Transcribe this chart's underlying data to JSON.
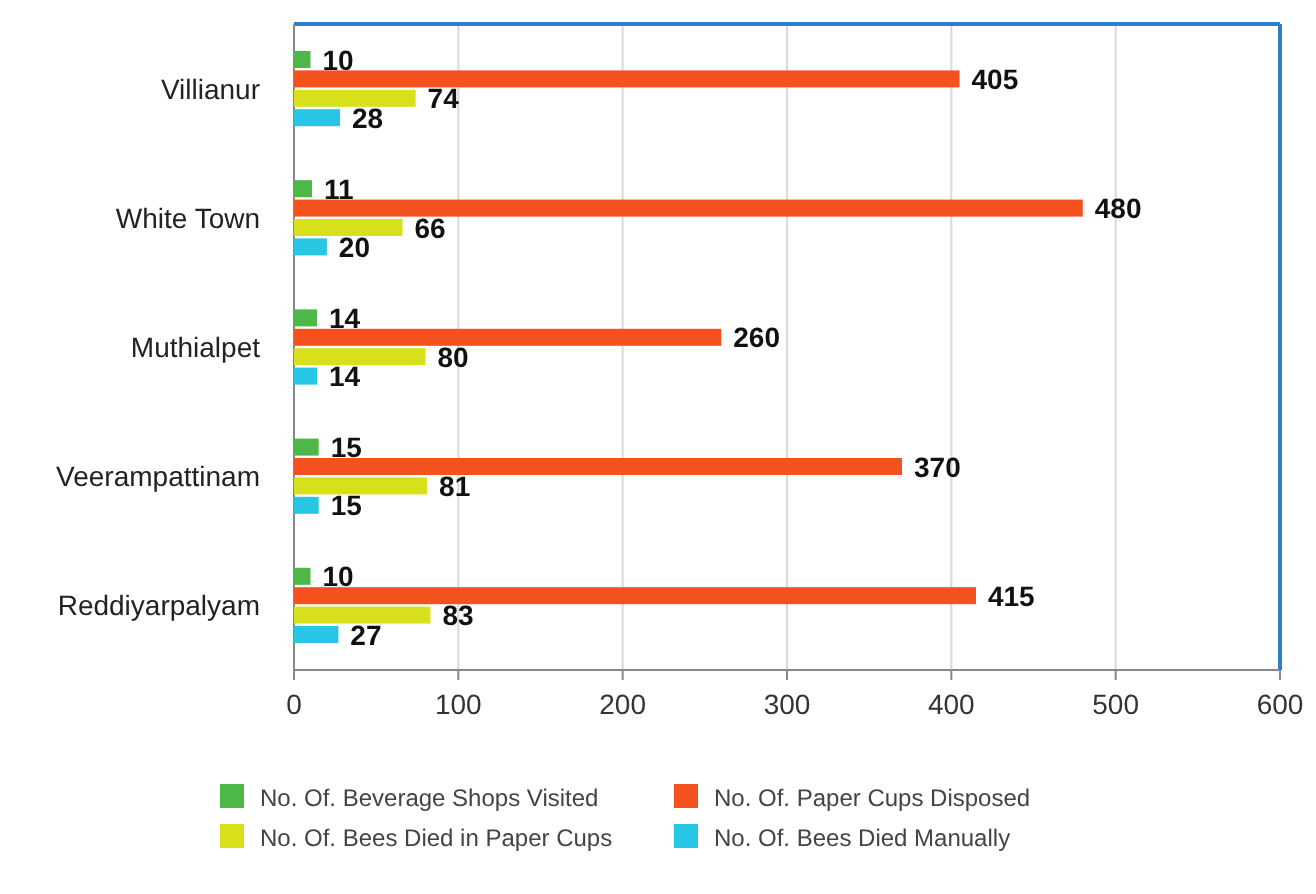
{
  "chart_data": {
    "type": "bar",
    "orientation": "horizontal",
    "categories": [
      "Villianur",
      "White Town",
      "Muthialpet",
      "Veerampattinam",
      "Reddiyarpalyam"
    ],
    "series": [
      {
        "name": "No. Of. Beverage Shops Visited",
        "color": "#4db848",
        "values": [
          10,
          11,
          14,
          15,
          10
        ]
      },
      {
        "name": "No. Of. Paper Cups Disposed",
        "color": "#f4511e",
        "values": [
          405,
          480,
          260,
          370,
          415
        ]
      },
      {
        "name": "No. Of. Bees Died in Paper Cups",
        "color": "#d7e01b",
        "values": [
          74,
          66,
          80,
          81,
          83
        ]
      },
      {
        "name": "No. Of. Bees Died Manually",
        "color": "#27c6e4",
        "values": [
          28,
          20,
          14,
          15,
          27
        ]
      }
    ],
    "xlim": [
      0,
      600
    ],
    "xticks": [
      0,
      100,
      200,
      300,
      400,
      500,
      600
    ],
    "grid": "x",
    "legend": "bottom",
    "data_labels": true
  }
}
